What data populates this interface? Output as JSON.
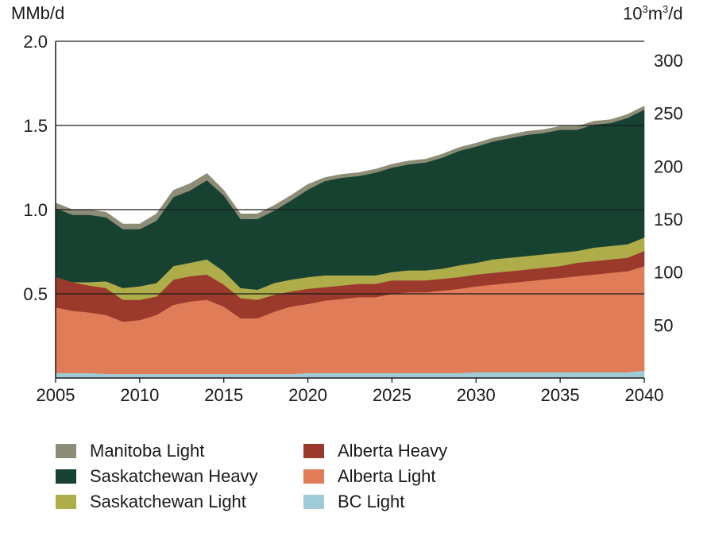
{
  "chart_data": {
    "type": "area",
    "stacked": true,
    "left_unit": "MMb/d",
    "right_unit_base": "10",
    "right_unit_exp1": "3",
    "right_unit_mid": "m",
    "right_unit_exp2": "3",
    "right_unit_tail": "/d",
    "x": [
      2005,
      2006,
      2007,
      2008,
      2009,
      2010,
      2011,
      2012,
      2013,
      2014,
      2015,
      2016,
      2017,
      2018,
      2019,
      2020,
      2021,
      2022,
      2023,
      2024,
      2025,
      2026,
      2027,
      2028,
      2029,
      2030,
      2031,
      2032,
      2033,
      2034,
      2035,
      2036,
      2037,
      2038,
      2039,
      2040
    ],
    "xlim": [
      2005,
      2040
    ],
    "xticks": [
      "2005",
      "2010",
      "2015",
      "2020",
      "2025",
      "2030",
      "2035",
      "2040"
    ],
    "ylim": [
      0,
      2.0
    ],
    "yticks": [
      "0.5",
      "1.0",
      "1.5",
      "2.0"
    ],
    "right_ylim": [
      0,
      318
    ],
    "right_yticks": [
      "50",
      "100",
      "150",
      "200",
      "250",
      "300"
    ],
    "grid": "horizontal",
    "legend_position": "bottom",
    "series": [
      {
        "name": "BC Light",
        "color": "#9ecbd6",
        "values": [
          0.03,
          0.03,
          0.03,
          0.025,
          0.025,
          0.025,
          0.025,
          0.025,
          0.025,
          0.025,
          0.025,
          0.025,
          0.025,
          0.025,
          0.025,
          0.03,
          0.03,
          0.03,
          0.03,
          0.03,
          0.03,
          0.03,
          0.03,
          0.03,
          0.03,
          0.035,
          0.035,
          0.035,
          0.035,
          0.035,
          0.035,
          0.035,
          0.035,
          0.035,
          0.035,
          0.045
        ]
      },
      {
        "name": "Alberta Light",
        "color": "#e07c58",
        "values": [
          0.39,
          0.37,
          0.36,
          0.35,
          0.31,
          0.32,
          0.35,
          0.41,
          0.43,
          0.44,
          0.4,
          0.33,
          0.33,
          0.37,
          0.4,
          0.41,
          0.43,
          0.44,
          0.45,
          0.45,
          0.47,
          0.48,
          0.48,
          0.49,
          0.5,
          0.51,
          0.52,
          0.53,
          0.54,
          0.55,
          0.56,
          0.57,
          0.58,
          0.59,
          0.6,
          0.62
        ]
      },
      {
        "name": "Alberta Heavy",
        "color": "#9b3a2c",
        "values": [
          0.18,
          0.17,
          0.16,
          0.16,
          0.13,
          0.12,
          0.11,
          0.15,
          0.15,
          0.15,
          0.13,
          0.12,
          0.11,
          0.1,
          0.09,
          0.09,
          0.08,
          0.08,
          0.08,
          0.08,
          0.08,
          0.07,
          0.07,
          0.07,
          0.07,
          0.07,
          0.07,
          0.07,
          0.07,
          0.07,
          0.07,
          0.08,
          0.08,
          0.08,
          0.08,
          0.09
        ]
      },
      {
        "name": "Saskatchewan Light",
        "color": "#aead4a",
        "values": [
          0.0,
          0.0,
          0.02,
          0.04,
          0.07,
          0.08,
          0.08,
          0.08,
          0.08,
          0.09,
          0.08,
          0.06,
          0.06,
          0.07,
          0.07,
          0.07,
          0.07,
          0.06,
          0.05,
          0.05,
          0.05,
          0.06,
          0.06,
          0.06,
          0.07,
          0.07,
          0.08,
          0.08,
          0.08,
          0.08,
          0.08,
          0.07,
          0.08,
          0.08,
          0.08,
          0.08
        ]
      },
      {
        "name": "Saskatchewan Heavy",
        "color": "#174232",
        "values": [
          0.41,
          0.4,
          0.4,
          0.38,
          0.35,
          0.34,
          0.37,
          0.41,
          0.43,
          0.47,
          0.45,
          0.41,
          0.42,
          0.43,
          0.47,
          0.52,
          0.56,
          0.58,
          0.59,
          0.61,
          0.62,
          0.63,
          0.64,
          0.66,
          0.68,
          0.69,
          0.7,
          0.71,
          0.72,
          0.72,
          0.73,
          0.72,
          0.73,
          0.73,
          0.75,
          0.76
        ]
      },
      {
        "name": "Manitoba Light",
        "color": "#8d8c76",
        "values": [
          0.03,
          0.03,
          0.03,
          0.03,
          0.03,
          0.03,
          0.04,
          0.04,
          0.04,
          0.04,
          0.03,
          0.03,
          0.03,
          0.03,
          0.03,
          0.03,
          0.02,
          0.02,
          0.02,
          0.02,
          0.02,
          0.02,
          0.02,
          0.02,
          0.02,
          0.02,
          0.02,
          0.02,
          0.02,
          0.02,
          0.02,
          0.02,
          0.02,
          0.02,
          0.02,
          0.02
        ]
      }
    ]
  },
  "legend": {
    "items": [
      {
        "label": "Manitoba Light",
        "color": "#8d8c76"
      },
      {
        "label": "Saskatchewan Heavy",
        "color": "#174232"
      },
      {
        "label": "Saskatchewan Light",
        "color": "#aead4a"
      },
      {
        "label": "Alberta Heavy",
        "color": "#9b3a2c"
      },
      {
        "label": "Alberta Light",
        "color": "#e07c58"
      },
      {
        "label": "BC Light",
        "color": "#9ecbd6"
      }
    ]
  }
}
